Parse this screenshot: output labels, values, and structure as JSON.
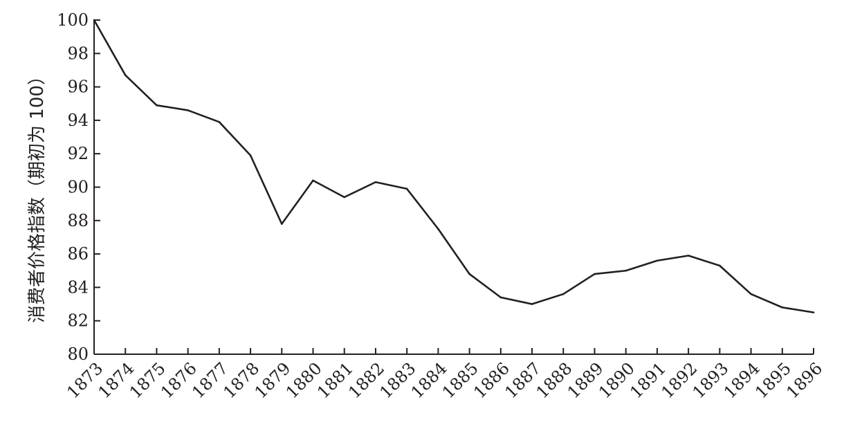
{
  "chart_data": {
    "type": "line",
    "title": "",
    "xlabel": "",
    "ylabel": "消费者价格指数（期初为 100）",
    "ylim": [
      80,
      100
    ],
    "yticks": [
      80,
      82,
      84,
      86,
      88,
      90,
      92,
      94,
      96,
      98,
      100
    ],
    "x": [
      "1873",
      "1874",
      "1875",
      "1876",
      "1877",
      "1878",
      "1879",
      "1880",
      "1881",
      "1882",
      "1883",
      "1884",
      "1885",
      "1886",
      "1887",
      "1888",
      "1889",
      "1890",
      "1891",
      "1892",
      "1893",
      "1894",
      "1895",
      "1896"
    ],
    "series": [
      {
        "values": [
          100,
          96.7,
          94.9,
          94.6,
          93.9,
          91.9,
          87.8,
          90.4,
          89.4,
          90.3,
          89.9,
          87.5,
          84.8,
          83.4,
          83.0,
          83.6,
          84.8,
          85.0,
          85.6,
          85.9,
          85.3,
          83.6,
          82.8,
          82.5
        ]
      }
    ],
    "grid": false,
    "legend": "none",
    "line_color": "#231f20"
  }
}
